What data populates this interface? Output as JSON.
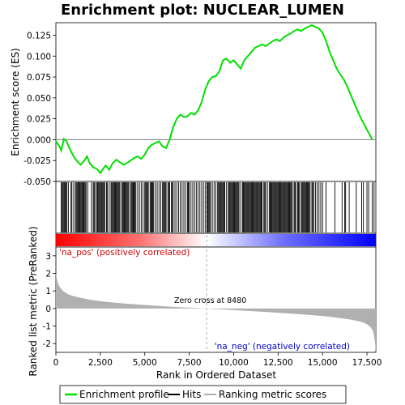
{
  "chart_data": {
    "type": "line",
    "title": "Enrichment plot: NUCLEAR_LUMEN",
    "xlabel": "Rank in Ordered Dataset",
    "ylabel_top": "Enrichment score (ES)",
    "ylabel_bottom": "Ranked list metric (PreRanked)",
    "x_range": [
      0,
      18000
    ],
    "x_ticks": [
      "0",
      "2,500",
      "5,000",
      "7,500",
      "10,000",
      "12,500",
      "15,000",
      "17,500"
    ],
    "x_tick_values": [
      0,
      2500,
      5000,
      7500,
      10000,
      12500,
      15000,
      17500
    ],
    "es_range": [
      -0.05,
      0.14
    ],
    "es_ticks": [
      "0.125",
      "0.100",
      "0.075",
      "0.050",
      "0.025",
      "0.000",
      "-0.025",
      "-0.050"
    ],
    "es_tick_values": [
      0.125,
      0.1,
      0.075,
      0.05,
      0.025,
      0.0,
      -0.025,
      -0.05
    ],
    "metric_range": [
      -2.5,
      3.5
    ],
    "metric_ticks": [
      "3",
      "2",
      "1",
      "0",
      "-1",
      "-2"
    ],
    "metric_tick_values": [
      3,
      2,
      1,
      0,
      -1,
      -2
    ],
    "zero_cross_label": "Zero cross at 8480",
    "zero_cross": 8480,
    "pos_label": "'na_pos' (positively correlated)",
    "neg_label": "'na_neg' (negatively correlated)",
    "series": [
      {
        "name": "Enrichment profile",
        "color": "#00e000",
        "x": [
          0,
          200,
          300,
          450,
          600,
          800,
          1000,
          1200,
          1400,
          1600,
          1750,
          1900,
          2100,
          2300,
          2500,
          2650,
          2800,
          3000,
          3200,
          3400,
          3600,
          3800,
          4000,
          4200,
          4400,
          4600,
          4800,
          5000,
          5200,
          5400,
          5600,
          5800,
          6000,
          6200,
          6400,
          6600,
          6800,
          7000,
          7200,
          7400,
          7600,
          7800,
          8000,
          8200,
          8400,
          8600,
          8800,
          9000,
          9200,
          9400,
          9600,
          9800,
          10000,
          10200,
          10400,
          10600,
          10800,
          11000,
          11200,
          11400,
          11600,
          11800,
          12000,
          12200,
          12400,
          12600,
          12800,
          13000,
          13200,
          13400,
          13600,
          13800,
          14000,
          14200,
          14400,
          14600,
          14800,
          15000,
          15200,
          15400,
          15600,
          15800,
          16000,
          16200,
          16400,
          16600,
          16800,
          17000,
          17200,
          17400,
          17600,
          17800
        ],
        "y": [
          -0.002,
          -0.008,
          -0.013,
          0.001,
          -0.002,
          -0.012,
          -0.02,
          -0.026,
          -0.03,
          -0.025,
          -0.02,
          -0.028,
          -0.033,
          -0.035,
          -0.04,
          -0.035,
          -0.031,
          -0.036,
          -0.028,
          -0.024,
          -0.027,
          -0.03,
          -0.028,
          -0.025,
          -0.022,
          -0.02,
          -0.023,
          -0.018,
          -0.01,
          -0.006,
          -0.004,
          -0.002,
          -0.008,
          -0.01,
          0.0,
          0.015,
          0.025,
          0.03,
          0.027,
          0.028,
          0.032,
          0.03,
          0.035,
          0.045,
          0.06,
          0.07,
          0.075,
          0.076,
          0.082,
          0.095,
          0.097,
          0.092,
          0.095,
          0.09,
          0.085,
          0.095,
          0.1,
          0.105,
          0.11,
          0.112,
          0.114,
          0.112,
          0.115,
          0.118,
          0.12,
          0.118,
          0.122,
          0.125,
          0.127,
          0.13,
          0.132,
          0.13,
          0.133,
          0.135,
          0.137,
          0.135,
          0.133,
          0.128,
          0.118,
          0.105,
          0.095,
          0.085,
          0.078,
          0.072,
          0.063,
          0.053,
          0.043,
          0.033,
          0.024,
          0.016,
          0.008,
          0.0
        ]
      },
      {
        "name": "Hits",
        "color": "#000000",
        "x": [
          300,
          350,
          400,
          450,
          500,
          520,
          560,
          620,
          700,
          850,
          900,
          1000,
          1100,
          1150,
          1200,
          1260,
          1300,
          1350,
          1400,
          1450,
          1500,
          1520,
          1550,
          1600,
          1650,
          1700,
          1800,
          2000,
          2100,
          2150,
          2200,
          2300,
          2350,
          2400,
          2450,
          2500,
          2550,
          2600,
          2650,
          2700,
          2750,
          2850,
          2900,
          3000,
          3100,
          3150,
          3200,
          3250,
          3300,
          3350,
          3400,
          3450,
          3500,
          3550,
          3600,
          3700,
          3750,
          3800,
          3850,
          3900,
          3950,
          4000,
          4050,
          4100,
          4200,
          4250,
          4300,
          4350,
          4400,
          4450,
          4500,
          4600,
          4700,
          4800,
          4900,
          5000,
          5050,
          5100,
          5150,
          5200,
          5300,
          5350,
          5400,
          5450,
          5500,
          5600,
          5700,
          5800,
          5900,
          6000,
          6050,
          6100,
          6150,
          6200,
          6300,
          6350,
          6400,
          6500,
          6550,
          6600,
          6700,
          6800,
          6900,
          7000,
          7100,
          7200,
          7300,
          7400,
          7450,
          7500,
          7600,
          7700,
          7800,
          7900,
          8000,
          8100,
          8200,
          8300,
          8400,
          8500,
          8550,
          8600,
          8650,
          8700,
          8800,
          8900,
          9000,
          9100,
          9150,
          9200,
          9250,
          9300,
          9350,
          9400,
          9450,
          9500,
          9600,
          9700,
          9750,
          9800,
          9850,
          9900,
          9950,
          10000,
          10050,
          10100,
          10150,
          10200,
          10250,
          10300,
          10400,
          10500,
          10550,
          10600,
          10650,
          10700,
          10750,
          10800,
          10850,
          10900,
          10950,
          11000,
          11050,
          11100,
          11150,
          11200,
          11250,
          11300,
          11350,
          11400,
          11450,
          11500,
          11550,
          11600,
          11700,
          11750,
          11800,
          11900,
          12000,
          12050,
          12100,
          12150,
          12200,
          12250,
          12300,
          12350,
          12400,
          12450,
          12500,
          12550,
          12600,
          12650,
          12700,
          12750,
          12800,
          12850,
          12900,
          12950,
          13000,
          13050,
          13100,
          13150,
          13200,
          13250,
          13300,
          13400,
          13450,
          13500,
          13600,
          13650,
          13700,
          13800,
          13850,
          13900,
          13950,
          14000,
          14050,
          14100,
          14150,
          14200,
          14250,
          14300,
          14400,
          14450,
          14500,
          14600,
          14700,
          14800,
          14900,
          15000,
          15200,
          15700,
          16100,
          16250,
          16300,
          16500,
          16900,
          17200,
          17300,
          17500,
          17600,
          17800,
          17900
        ],
        "y_label": ""
      },
      {
        "name": "Ranking metric scores",
        "color": "#b0b0b0",
        "x": [
          0,
          100,
          200,
          400,
          700,
          1000,
          1500,
          2000,
          3000,
          4000,
          5000,
          6000,
          7000,
          8000,
          8480,
          9000,
          10000,
          11000,
          12000,
          13000,
          14000,
          15000,
          15500,
          16000,
          16500,
          17000,
          17300,
          17500,
          17700,
          17850,
          17950,
          18000
        ],
        "y": [
          2.0,
          1.5,
          1.25,
          1.0,
          0.8,
          0.7,
          0.58,
          0.48,
          0.36,
          0.27,
          0.2,
          0.13,
          0.07,
          0.02,
          0.0,
          -0.03,
          -0.09,
          -0.15,
          -0.21,
          -0.28,
          -0.35,
          -0.43,
          -0.48,
          -0.55,
          -0.62,
          -0.72,
          -0.8,
          -0.9,
          -1.05,
          -1.3,
          -1.9,
          -2.5
        ]
      }
    ],
    "legend": {
      "placement": "bottom",
      "entries": [
        "Enrichment profile",
        "Hits",
        "Ranking metric scores"
      ]
    },
    "colors": {
      "es_line": "#00e000",
      "hits": "#000000",
      "metric_fill": "#b0b0b0",
      "pos_text": "#cc0000",
      "neg_text": "#0000cc",
      "bar_red": "#ff0000",
      "bar_blue": "#0000ff"
    }
  }
}
